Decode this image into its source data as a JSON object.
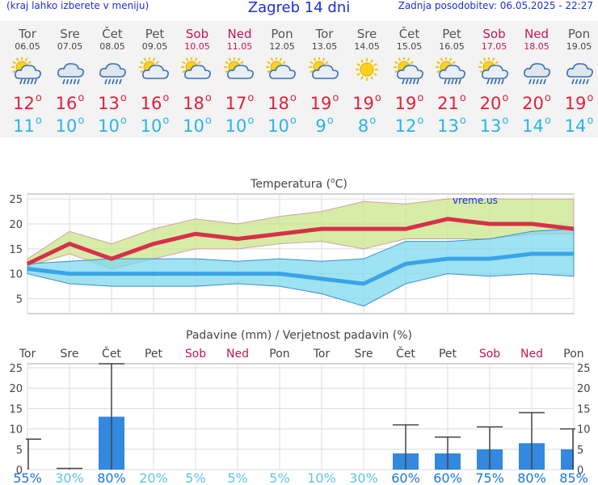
{
  "header": {
    "left_note": "(kraj lahko izberete v meniju)",
    "title": "Zagreb 14 dni",
    "updated": "Zadnja posodobitev: 06.05.2025 - 22:27"
  },
  "days": [
    {
      "name": "Tor",
      "date": "06.05",
      "weekend": false,
      "icon": "sun-cloud-rain-icon",
      "tmax": "12",
      "tmin": "11"
    },
    {
      "name": "Sre",
      "date": "07.05",
      "weekend": false,
      "icon": "cloud-rain-icon",
      "tmax": "16",
      "tmin": "10"
    },
    {
      "name": "Čet",
      "date": "08.05",
      "weekend": false,
      "icon": "cloud-rain-icon",
      "tmax": "13",
      "tmin": "10"
    },
    {
      "name": "Pet",
      "date": "09.05",
      "weekend": false,
      "icon": "cloudy-sun-icon",
      "tmax": "16",
      "tmin": "10"
    },
    {
      "name": "Sob",
      "date": "10.05",
      "weekend": true,
      "icon": "sun-cloud-icon",
      "tmax": "18",
      "tmin": "10"
    },
    {
      "name": "Ned",
      "date": "11.05",
      "weekend": true,
      "icon": "cloudy-sun-icon",
      "tmax": "17",
      "tmin": "10"
    },
    {
      "name": "Pon",
      "date": "12.05",
      "weekend": false,
      "icon": "sun-cloud-icon",
      "tmax": "18",
      "tmin": "10"
    },
    {
      "name": "Tor",
      "date": "13.05",
      "weekend": false,
      "icon": "sun-cloud-icon",
      "tmax": "19",
      "tmin": "9"
    },
    {
      "name": "Sre",
      "date": "14.05",
      "weekend": false,
      "icon": "sun-icon",
      "tmax": "19",
      "tmin": "8"
    },
    {
      "name": "Čet",
      "date": "15.05",
      "weekend": false,
      "icon": "sun-cloud-rain-icon",
      "tmax": "19",
      "tmin": "12"
    },
    {
      "name": "Pet",
      "date": "16.05",
      "weekend": false,
      "icon": "sun-cloud-rain-icon",
      "tmax": "21",
      "tmin": "13"
    },
    {
      "name": "Sob",
      "date": "17.05",
      "weekend": true,
      "icon": "sun-cloud-rain-icon",
      "tmax": "20",
      "tmin": "13"
    },
    {
      "name": "Ned",
      "date": "18.05",
      "weekend": true,
      "icon": "cloud-rain-icon",
      "tmax": "20",
      "tmin": "14"
    },
    {
      "name": "Pon",
      "date": "19.05",
      "weekend": false,
      "icon": "cloud-rain-icon",
      "tmax": "19",
      "tmin": "14"
    }
  ],
  "colors": {
    "max": "#d83048",
    "min": "#3aa4e8",
    "weekend": "#c0165a",
    "bar": "#3388e0"
  },
  "chart_data": [
    {
      "type": "line",
      "title": "Temperatura (°C)",
      "watermark": "vreme.us",
      "ylim": [
        2,
        26
      ],
      "yticks": [
        5,
        10,
        15,
        20,
        25
      ],
      "x": [
        0,
        1,
        2,
        3,
        4,
        5,
        6,
        7,
        8,
        9,
        10,
        11,
        12,
        13
      ],
      "series": [
        {
          "role": "max",
          "values": [
            12,
            16,
            13,
            16,
            18,
            17,
            18,
            19,
            19,
            19,
            21,
            20,
            20,
            19
          ]
        },
        {
          "role": "min",
          "values": [
            11,
            10,
            10,
            10,
            10,
            10,
            10,
            9,
            8,
            12,
            13,
            13,
            14,
            14
          ]
        }
      ],
      "bands": [
        {
          "role": "max-range",
          "low": [
            11.5,
            14,
            11,
            13,
            15,
            15,
            16,
            16.5,
            15,
            17,
            17,
            17,
            18,
            18
          ],
          "high": [
            13,
            18.5,
            16,
            19,
            21,
            20,
            21.5,
            22.5,
            24.5,
            24,
            25,
            25,
            25,
            25
          ]
        },
        {
          "role": "min-range",
          "low": [
            10,
            8,
            7.5,
            7.5,
            7.5,
            8,
            7.5,
            6,
            3.5,
            8,
            10,
            9.5,
            10,
            9.5
          ],
          "high": [
            12,
            12.5,
            13,
            13,
            13,
            12.5,
            13,
            12.5,
            13,
            16.5,
            16.5,
            17,
            18.5,
            19
          ]
        }
      ]
    },
    {
      "type": "bar",
      "title": "Padavine (mm) / Verjetnost padavin (%)",
      "ylim": [
        0,
        26
      ],
      "yticks": [
        0,
        5,
        10,
        15,
        20,
        25
      ],
      "categories": [
        "Tor",
        "Sre",
        "Čet",
        "Pet",
        "Sob",
        "Ned",
        "Pon",
        "Tor",
        "Sre",
        "Čet",
        "Pet",
        "Sob",
        "Ned",
        "Pon"
      ],
      "values": [
        0,
        0,
        13,
        0,
        0,
        0,
        0,
        0,
        0,
        4,
        4,
        5,
        6.5,
        5
      ],
      "error_high": [
        7.5,
        0.3,
        26,
        0,
        0,
        0,
        0,
        0,
        0,
        11,
        8,
        10.5,
        14,
        10
      ],
      "probability": [
        "55%",
        "30%",
        "80%",
        "20%",
        "5%",
        "5%",
        "5%",
        "10%",
        "30%",
        "60%",
        "60%",
        "75%",
        "80%",
        "85%"
      ]
    }
  ]
}
